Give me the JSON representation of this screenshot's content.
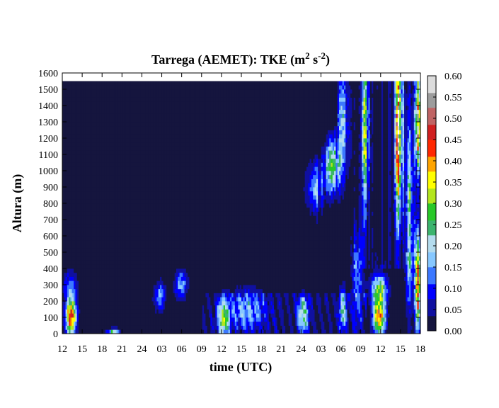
{
  "chart_data": {
    "type": "heatmap",
    "title": "Tarrega (AEMET): TKE (m",
    "title_sup1": "2",
    "title_mid": " s",
    "title_sup2": "-2",
    "title_end": ")",
    "xlabel": "time (UTC)",
    "ylabel": "Altura (m)",
    "x_tick_labels": [
      "12",
      "15",
      "18",
      "21",
      "24",
      "03",
      "06",
      "09",
      "12",
      "15",
      "18",
      "21",
      "24",
      "03",
      "06",
      "09",
      "12",
      "15",
      "18"
    ],
    "x_range_hours": [
      0,
      54
    ],
    "y_ticks": [
      0,
      100,
      200,
      300,
      400,
      500,
      600,
      700,
      800,
      900,
      1000,
      1100,
      1200,
      1300,
      1400,
      1500,
      1600
    ],
    "ylim": [
      0,
      1600
    ],
    "data_top_altitude": 1550,
    "colorbar": {
      "ticks": [
        "0.00",
        "0.05",
        "0.10",
        "0.15",
        "0.20",
        "0.25",
        "0.30",
        "0.35",
        "0.40",
        "0.45",
        "0.50",
        "0.55",
        "0.60"
      ],
      "range": [
        0,
        0.6
      ],
      "colors": [
        "#15153e",
        "#1010a0",
        "#0000ff",
        "#3c78ff",
        "#87c8ff",
        "#b4dcee",
        "#3cb46e",
        "#28c828",
        "#b4e61e",
        "#ffff00",
        "#ffa500",
        "#ff2800",
        "#d02020",
        "#c06464",
        "#9c9c9c",
        "#dcdcdc",
        "#ffffff"
      ]
    },
    "blobs": [
      {
        "t": 1.3,
        "z": 110,
        "st": 0.55,
        "sz": 80,
        "v": 0.46
      },
      {
        "t": 1.2,
        "z": 300,
        "st": 0.7,
        "sz": 60,
        "v": 0.12
      },
      {
        "t": 7.7,
        "z": 15,
        "st": 0.6,
        "sz": 12,
        "v": 0.24
      },
      {
        "t": 14.7,
        "z": 230,
        "st": 0.6,
        "sz": 60,
        "v": 0.15
      },
      {
        "t": 17.9,
        "z": 300,
        "st": 0.7,
        "sz": 60,
        "v": 0.16
      },
      {
        "t": 24.3,
        "z": 100,
        "st": 0.6,
        "sz": 80,
        "v": 0.27
      },
      {
        "t": 28.0,
        "z": 150,
        "st": 2.0,
        "sz": 90,
        "v": 0.13
      },
      {
        "t": 36.3,
        "z": 120,
        "st": 0.6,
        "sz": 80,
        "v": 0.22
      },
      {
        "t": 42.3,
        "z": 150,
        "st": 0.4,
        "sz": 90,
        "v": 0.2
      },
      {
        "t": 47.8,
        "z": 110,
        "st": 0.65,
        "sz": 85,
        "v": 0.4
      },
      {
        "t": 47.8,
        "z": 280,
        "st": 0.9,
        "sz": 60,
        "v": 0.24
      },
      {
        "t": 38.2,
        "z": 900,
        "st": 1.0,
        "sz": 110,
        "v": 0.14
      },
      {
        "t": 40.6,
        "z": 1030,
        "st": 0.75,
        "sz": 110,
        "v": 0.3
      },
      {
        "t": 42.4,
        "z": 1300,
        "st": 0.6,
        "sz": 250,
        "v": 0.18
      },
      {
        "t": 45.7,
        "z": 1250,
        "st": 0.35,
        "sz": 300,
        "v": 0.22
      },
      {
        "t": 50.8,
        "z": 1250,
        "st": 0.4,
        "sz": 350,
        "v": 0.36
      },
      {
        "t": 52.3,
        "z": 800,
        "st": 0.35,
        "sz": 400,
        "v": 0.32
      },
      {
        "t": 53.7,
        "z": 1300,
        "st": 0.3,
        "sz": 200,
        "v": 0.4
      },
      {
        "t": 53.6,
        "z": 300,
        "st": 0.3,
        "sz": 200,
        "v": 0.42
      },
      {
        "t": 44.5,
        "z": 350,
        "st": 0.6,
        "sz": 200,
        "v": 0.13
      }
    ]
  }
}
